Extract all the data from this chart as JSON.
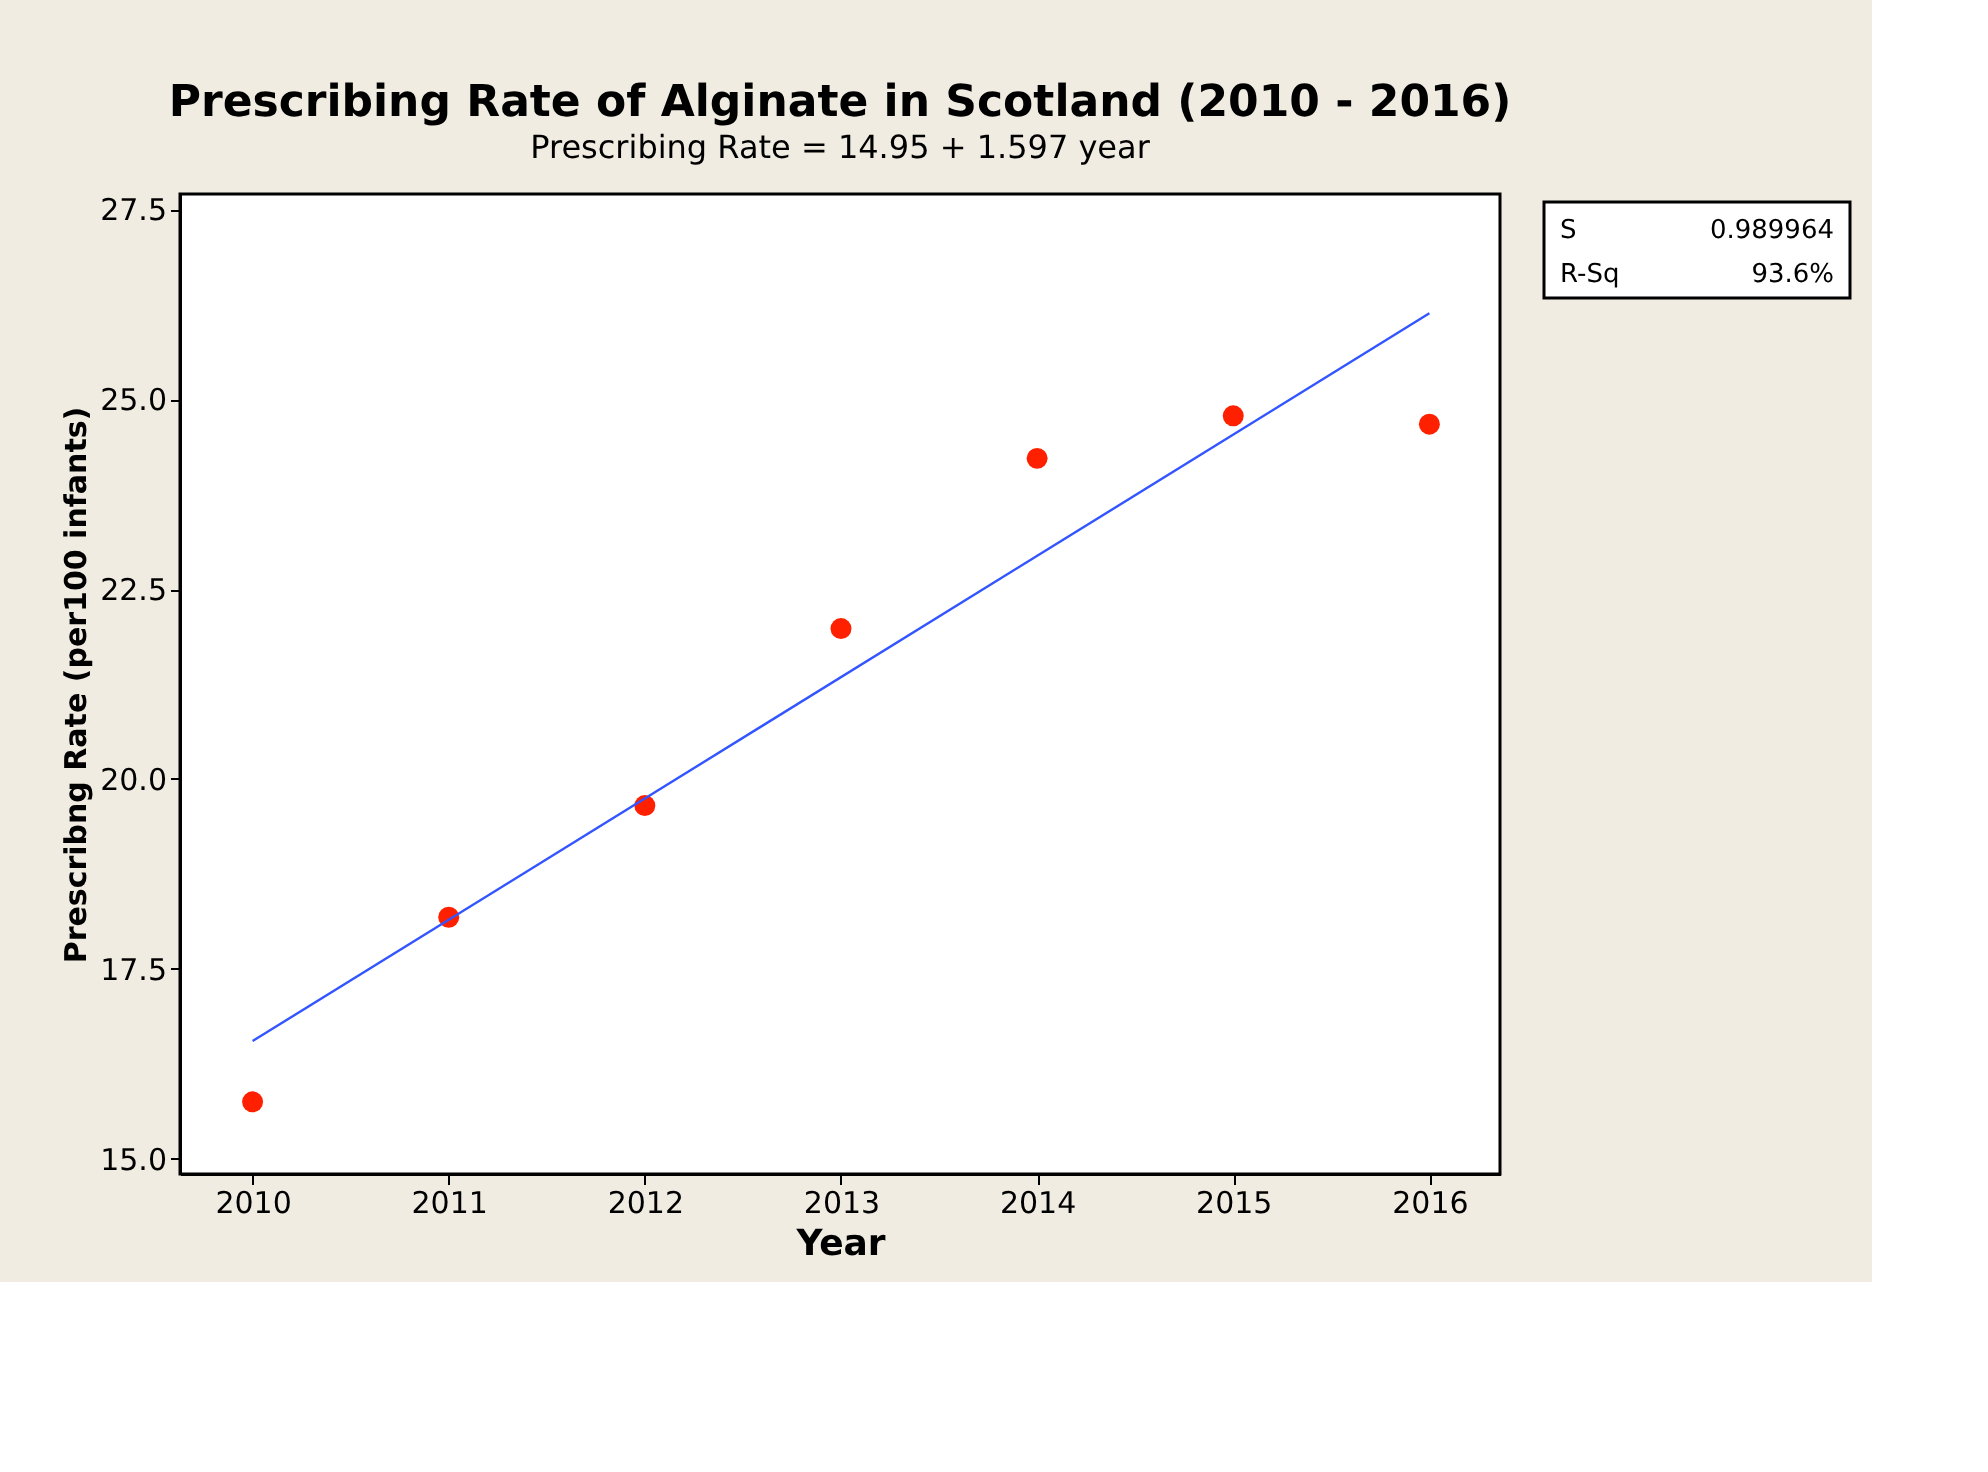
{
  "chart_data": {
    "type": "scatter",
    "title": "Prescribing Rate of Alginate in Scotland (2010 - 2016)",
    "subtitle": "Prescribing Rate  =  14.95 + 1.597 year",
    "xlabel": "Year",
    "ylabel": "Prescribng Rate (per100 infants)",
    "x": [
      2010,
      2011,
      2012,
      2013,
      2014,
      2015,
      2016
    ],
    "series": [
      {
        "color": "#ff2000",
        "marker": "circle",
        "values": [
          15.75,
          18.18,
          19.65,
          21.98,
          24.22,
          24.78,
          24.67
        ]
      },
      {
        "type": "line",
        "color": "#3355ff",
        "line_style": "solid",
        "marker": "none",
        "x": [
          2010,
          2016
        ],
        "values": [
          16.55,
          26.13
        ]
      }
    ],
    "xlim": [
      2009.63,
      2016.36
    ],
    "xticks": [
      2010,
      2011,
      2012,
      2013,
      2014,
      2015,
      2016
    ],
    "ylim": [
      14.8,
      27.7
    ],
    "yticks": [
      {
        "value": 15,
        "label": "15.0"
      },
      {
        "value": 17.5,
        "label": "17.5"
      },
      {
        "value": 20,
        "label": "20.0"
      },
      {
        "value": 22.5,
        "label": "22.5"
      },
      {
        "value": 25,
        "label": "25.0"
      },
      {
        "value": 27.5,
        "label": "27.5"
      }
    ],
    "grid": false,
    "annotations": [
      "S",
      "0.989964",
      "R-Sq",
      "93.6%"
    ]
  }
}
